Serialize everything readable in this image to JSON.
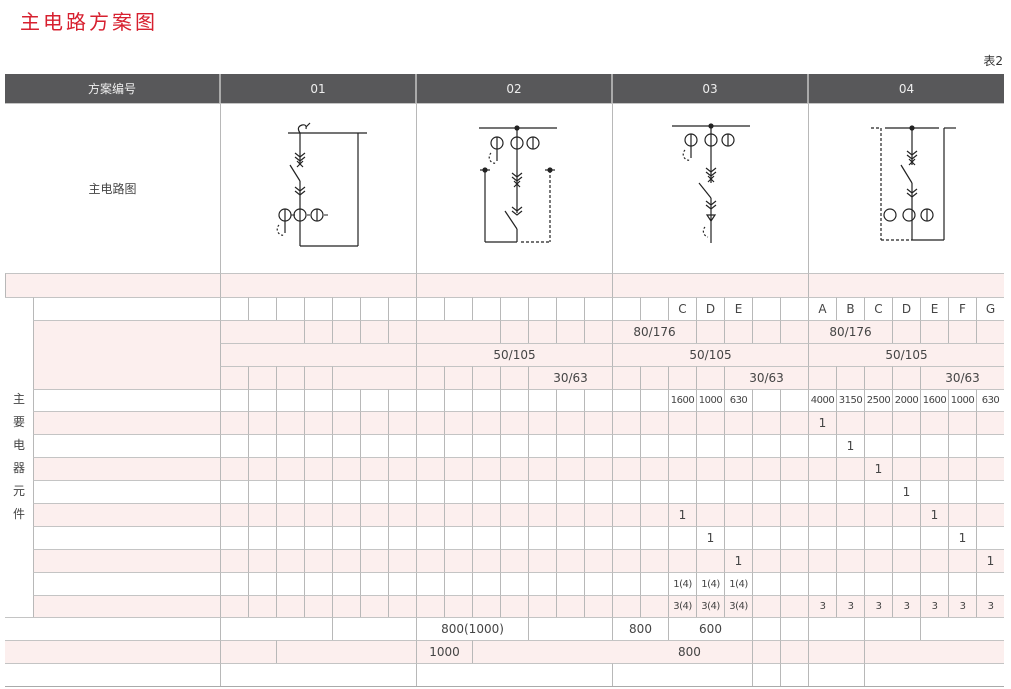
{
  "title": "主电路方案图",
  "table_no": "表2",
  "header": {
    "label": "方案编号",
    "schemes": [
      "01",
      "02",
      "03",
      "04"
    ]
  },
  "diagram_row_label": "主电路图",
  "side_label": [
    "主",
    "要",
    "电",
    "器",
    "元",
    "件"
  ],
  "colors": {
    "title": "#d7202f",
    "header_bg": "#58585a",
    "row_pink": "#fcefee"
  },
  "grid_rows": [
    {
      "pink": false,
      "cells": [
        "",
        "",
        "",
        "",
        "",
        "",
        "",
        "",
        "",
        "",
        "",
        "",
        "",
        "",
        "",
        "",
        "C",
        "D",
        "E",
        "",
        "",
        "A",
        "B",
        "C",
        "D",
        "E",
        "F",
        "G"
      ]
    },
    {
      "pink": true,
      "cells": [
        {
          "t": "",
          "s": 3
        },
        "",
        "",
        "",
        "",
        {
          "t": "",
          "s": 3
        },
        "",
        "",
        "",
        "",
        {
          "t": "80/176",
          "s": 3
        },
        "",
        "",
        "",
        "",
        {
          "t": "80/176",
          "s": 3
        },
        "",
        "",
        "",
        ""
      ]
    },
    {
      "pink": true,
      "cells": [
        {
          "t": "",
          "s": 7
        },
        {
          "t": "50/105",
          "s": 7
        },
        {
          "t": "50/105",
          "s": 7
        },
        {
          "t": "50/105",
          "s": 7
        }
      ]
    },
    {
      "pink": true,
      "cells": [
        "",
        "",
        "",
        "",
        {
          "t": "",
          "s": 3
        },
        "",
        "",
        "",
        "",
        {
          "t": "30/63",
          "s": 3
        },
        "",
        "",
        "",
        "",
        {
          "t": "30/63",
          "s": 3
        },
        "",
        "",
        "",
        "",
        {
          "t": "30/63",
          "s": 3
        }
      ]
    },
    {
      "pink": false,
      "small": true,
      "cells": [
        "",
        "",
        "",
        "",
        "",
        "",
        "",
        "",
        "",
        "",
        "",
        "",
        "",
        "",
        "",
        "",
        "1600",
        "1000",
        "630",
        "",
        "",
        "4000",
        "3150",
        "2500",
        "2000",
        "1600",
        "1000",
        "630"
      ]
    },
    {
      "pink": true,
      "cells": [
        "",
        "",
        "",
        "",
        "",
        "",
        "",
        "",
        "",
        "",
        "",
        "",
        "",
        "",
        "",
        "",
        "",
        "",
        "",
        "",
        "",
        "1",
        "",
        "",
        "",
        "",
        "",
        ""
      ]
    },
    {
      "pink": false,
      "cells": [
        "",
        "",
        "",
        "",
        "",
        "",
        "",
        "",
        "",
        "",
        "",
        "",
        "",
        "",
        "",
        "",
        "",
        "",
        "",
        "",
        "",
        "",
        "1",
        "",
        "",
        "",
        "",
        ""
      ]
    },
    {
      "pink": true,
      "cells": [
        "",
        "",
        "",
        "",
        "",
        "",
        "",
        "",
        "",
        "",
        "",
        "",
        "",
        "",
        "",
        "",
        "",
        "",
        "",
        "",
        "",
        "",
        "",
        "1",
        "",
        "",
        "",
        ""
      ]
    },
    {
      "pink": false,
      "cells": [
        "",
        "",
        "",
        "",
        "",
        "",
        "",
        "",
        "",
        "",
        "",
        "",
        "",
        "",
        "",
        "",
        "",
        "",
        "",
        "",
        "",
        "",
        "",
        "",
        "1",
        "",
        "",
        ""
      ]
    },
    {
      "pink": true,
      "cells": [
        "",
        "",
        "",
        "",
        "",
        "",
        "",
        "",
        "",
        "",
        "",
        "",
        "",
        "",
        "",
        "",
        "1",
        "",
        "",
        "",
        "",
        "",
        "",
        "",
        "",
        "1",
        "",
        ""
      ]
    },
    {
      "pink": false,
      "cells": [
        "",
        "",
        "",
        "",
        "",
        "",
        "",
        "",
        "",
        "",
        "",
        "",
        "",
        "",
        "",
        "",
        "",
        "1",
        "",
        "",
        "",
        "",
        "",
        "",
        "",
        "",
        "1",
        ""
      ]
    },
    {
      "pink": true,
      "cells": [
        "",
        "",
        "",
        "",
        "",
        "",
        "",
        "",
        "",
        "",
        "",
        "",
        "",
        "",
        "",
        "",
        "",
        "",
        "1",
        "",
        "",
        "",
        "",
        "",
        "",
        "",
        "",
        "1"
      ]
    },
    {
      "pink": false,
      "small": true,
      "cells": [
        "",
        "",
        "",
        "",
        "",
        "",
        "",
        "",
        "",
        "",
        "",
        "",
        "",
        "",
        "",
        "",
        "1(4)",
        "1(4)",
        "1(4)",
        "",
        "",
        "",
        "",
        "",
        "",
        "",
        "",
        ""
      ]
    },
    {
      "pink": true,
      "small": true,
      "cells": [
        "",
        "",
        "",
        "",
        "",
        "",
        "",
        "",
        "",
        "",
        "",
        "",
        "",
        "",
        "",
        "",
        "3(4)",
        "3(4)",
        "3(4)",
        "",
        "",
        "3",
        "3",
        "3",
        "3",
        "3",
        "3",
        "3"
      ]
    }
  ],
  "bottom_rows": [
    {
      "pink": false,
      "cells": [
        {
          "t": "",
          "s": 4
        },
        {
          "t": "",
          "s": 3
        },
        {
          "t": "800(1000)",
          "s": 4
        },
        {
          "t": "",
          "s": 3
        },
        {
          "t": "800",
          "s": 2
        },
        {
          "t": "600",
          "s": 3
        },
        "",
        "",
        {
          "t": "",
          "s": 2
        },
        {
          "t": "",
          "s": 2
        },
        {
          "t": "",
          "s": 3
        }
      ]
    },
    {
      "pink": true,
      "cells": [
        {
          "t": "",
          "s": 2
        },
        {
          "t": "",
          "s": 5
        },
        {
          "t": "1000",
          "s": 2
        },
        {
          "t": "800",
          "s": 10
        },
        "",
        "",
        {
          "t": "",
          "s": 2
        },
        {
          "t": "",
          "s": 5
        }
      ]
    },
    {
      "pink": false,
      "cells": [
        {
          "t": "",
          "s": 7
        },
        {
          "t": "",
          "s": 7
        },
        {
          "t": "",
          "s": 5
        },
        "",
        "",
        {
          "t": "",
          "s": 2
        },
        {
          "t": "",
          "s": 5
        }
      ]
    }
  ]
}
